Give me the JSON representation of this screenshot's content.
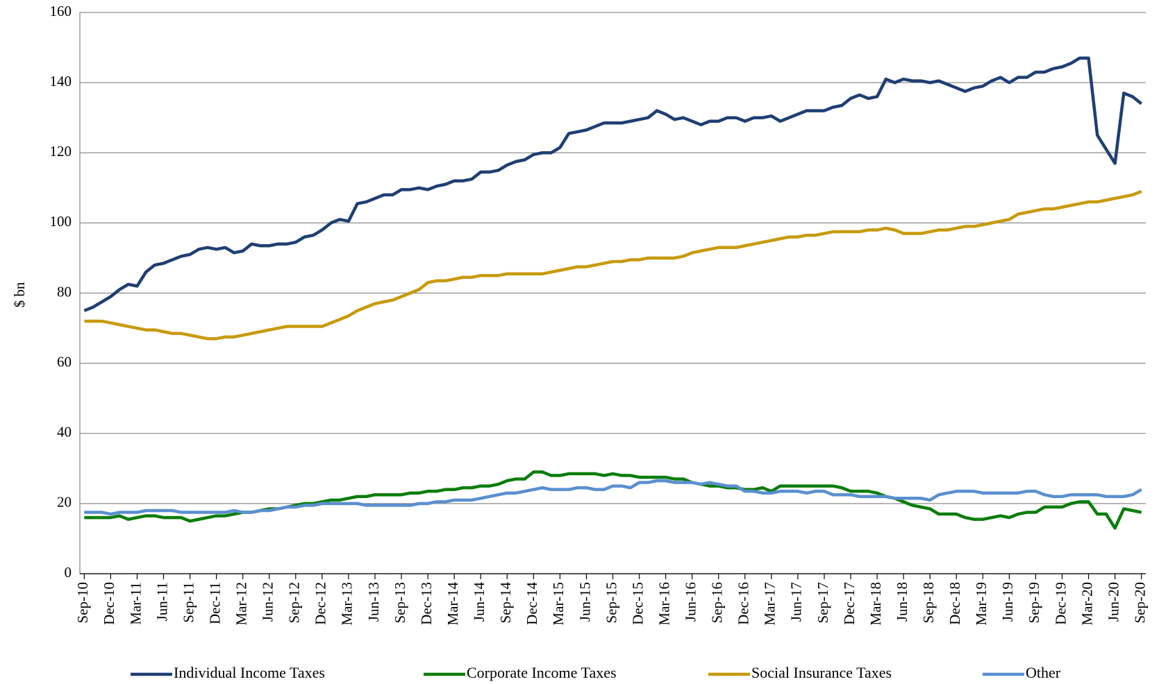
{
  "chart_data": {
    "type": "line",
    "y_label": "$ bn",
    "categories": [
      "Sep-10",
      null,
      null,
      "Dec-10",
      null,
      null,
      "Mar-11",
      null,
      null,
      "Jun-11",
      null,
      null,
      "Sep-11",
      null,
      null,
      "Dec-11",
      null,
      null,
      "Mar-12",
      null,
      null,
      "Jun-12",
      null,
      null,
      "Sep-12",
      null,
      null,
      "Dec-12",
      null,
      null,
      "Mar-13",
      null,
      null,
      "Jun-13",
      null,
      null,
      "Sep-13",
      null,
      null,
      "Dec-13",
      null,
      null,
      "Mar-14",
      null,
      null,
      "Jun-14",
      null,
      null,
      "Sep-14",
      null,
      null,
      "Dec-14",
      null,
      null,
      "Mar-15",
      null,
      null,
      "Jun-15",
      null,
      null,
      "Sep-15",
      null,
      null,
      "Dec-15",
      null,
      null,
      "Mar-16",
      null,
      null,
      "Jun-16",
      null,
      null,
      "Sep-16",
      null,
      null,
      "Dec-16",
      null,
      null,
      "Mar-17",
      null,
      null,
      "Jun-17",
      null,
      null,
      "Sep-17",
      null,
      null,
      "Dec-17",
      null,
      null,
      "Mar-18",
      null,
      null,
      "Jun-18",
      null,
      null,
      "Sep-18",
      null,
      null,
      "Dec-18",
      null,
      null,
      "Mar-19",
      null,
      null,
      "Jun-19",
      null,
      null,
      "Sep-19",
      null,
      null,
      "Dec-19",
      null,
      null,
      "Mar-20",
      null,
      null,
      "Jun-20",
      null,
      null,
      "Sep-20"
    ],
    "series": [
      {
        "name": "Individual Income Taxes",
        "color": "#1f3f73",
        "values": [
          75,
          76,
          77.5,
          79,
          81,
          82.5,
          82,
          86,
          88,
          88.5,
          89.5,
          90.5,
          91,
          92.5,
          93,
          92.5,
          93,
          91.5,
          92,
          94,
          93.5,
          93.5,
          94,
          94,
          94.5,
          96,
          96.5,
          98,
          100,
          101,
          100.5,
          105.5,
          106,
          107,
          108,
          108,
          109.5,
          109.5,
          110,
          109.5,
          110.5,
          111,
          112,
          112,
          112.5,
          114.5,
          114.5,
          115,
          116.5,
          117.5,
          118,
          119.5,
          120,
          120,
          121.5,
          125.5,
          126,
          126.5,
          127.5,
          128.5,
          128.5,
          128.5,
          129,
          129.5,
          130,
          132,
          131,
          129.5,
          130,
          129,
          128,
          129,
          129,
          130,
          130,
          129,
          130,
          130,
          130.5,
          129,
          130,
          131,
          132,
          132,
          132,
          133,
          133.5,
          135.5,
          136.5,
          135.5,
          136,
          141,
          140,
          141,
          140.5,
          140.5,
          140,
          140.5,
          139.5,
          138.5,
          137.5,
          138.5,
          139,
          140.5,
          141.5,
          140,
          141.5,
          141.5,
          143,
          143,
          144,
          144.5,
          145.5,
          147,
          147,
          125,
          121,
          117,
          137,
          136,
          134
        ]
      },
      {
        "name": "Corporate Income Taxes",
        "color": "#0b7d0b",
        "values": [
          16,
          16,
          16,
          16,
          16.5,
          15.5,
          16,
          16.5,
          16.5,
          16,
          16,
          16,
          15,
          15.5,
          16,
          16.5,
          16.5,
          17,
          17.5,
          17.5,
          18,
          18.5,
          18.5,
          19,
          19.5,
          20,
          20,
          20.5,
          21,
          21,
          21.5,
          22,
          22,
          22.5,
          22.5,
          22.5,
          22.5,
          23,
          23,
          23.5,
          23.5,
          24,
          24,
          24.5,
          24.5,
          25,
          25,
          25.5,
          26.5,
          27,
          27,
          29,
          29,
          28,
          28,
          28.5,
          28.5,
          28.5,
          28.5,
          28,
          28.5,
          28,
          28,
          27.5,
          27.5,
          27.5,
          27.5,
          27,
          27,
          26,
          25.5,
          25,
          25,
          24.5,
          24.5,
          24,
          24,
          24.5,
          23.5,
          25,
          25,
          25,
          25,
          25,
          25,
          25,
          24.5,
          23.5,
          23.5,
          23.5,
          23,
          22,
          21.5,
          20.5,
          19.5,
          19,
          18.5,
          17,
          17,
          17,
          16,
          15.5,
          15.5,
          16,
          16.5,
          16,
          17,
          17.5,
          17.5,
          19,
          19,
          19,
          20,
          20.5,
          20.5,
          17,
          17,
          13,
          18.5,
          18,
          17.5
        ]
      },
      {
        "name": "Social Insurance Taxes",
        "color": "#c89a0c",
        "values": [
          72,
          72,
          72,
          71.5,
          71,
          70.5,
          70,
          69.5,
          69.5,
          69,
          68.5,
          68.5,
          68,
          67.5,
          67,
          67,
          67.5,
          67.5,
          68,
          68.5,
          69,
          69.5,
          70,
          70.5,
          70.5,
          70.5,
          70.5,
          70.5,
          71.5,
          72.5,
          73.5,
          75,
          76,
          77,
          77.5,
          78,
          79,
          80,
          81,
          83,
          83.5,
          83.5,
          84,
          84.5,
          84.5,
          85,
          85,
          85,
          85.5,
          85.5,
          85.5,
          85.5,
          85.5,
          86,
          86.5,
          87,
          87.5,
          87.5,
          88,
          88.5,
          89,
          89,
          89.5,
          89.5,
          90,
          90,
          90,
          90,
          90.5,
          91.5,
          92,
          92.5,
          93,
          93,
          93,
          93.5,
          94,
          94.5,
          95,
          95.5,
          96,
          96,
          96.5,
          96.5,
          97,
          97.5,
          97.5,
          97.5,
          97.5,
          98,
          98,
          98.5,
          98,
          97,
          97,
          97,
          97.5,
          98,
          98,
          98.5,
          99,
          99,
          99.5,
          100,
          100.5,
          101,
          102.5,
          103,
          103.5,
          104,
          104,
          104.5,
          105,
          105.5,
          106,
          106,
          106.5,
          107,
          107.5,
          108,
          109
        ]
      },
      {
        "name": "Other",
        "color": "#5a8fd0",
        "values": [
          17.5,
          17.5,
          17.5,
          17,
          17.5,
          17.5,
          17.5,
          18,
          18,
          18,
          18,
          17.5,
          17.5,
          17.5,
          17.5,
          17.5,
          17.5,
          18,
          17.5,
          17.5,
          18,
          18,
          18.5,
          19,
          19,
          19.5,
          19.5,
          20,
          20,
          20,
          20,
          20,
          19.5,
          19.5,
          19.5,
          19.5,
          19.5,
          19.5,
          20,
          20,
          20.5,
          20.5,
          21,
          21,
          21,
          21.5,
          22,
          22.5,
          23,
          23,
          23.5,
          24,
          24.5,
          24,
          24,
          24,
          24.5,
          24.5,
          24,
          24,
          25,
          25,
          24.5,
          26,
          26,
          26.5,
          26.5,
          26,
          26,
          26,
          25.5,
          26,
          25.5,
          25,
          25,
          23.5,
          23.5,
          23,
          23,
          23.5,
          23.5,
          23.5,
          23,
          23.5,
          23.5,
          22.5,
          22.5,
          22.5,
          22,
          22,
          22,
          22,
          21.5,
          21.5,
          21.5,
          21.5,
          21,
          22.5,
          23,
          23.5,
          23.5,
          23.5,
          23,
          23,
          23,
          23,
          23,
          23.5,
          23.5,
          22.5,
          22,
          22,
          22.5,
          22.5,
          22.5,
          22.5,
          22,
          22,
          22,
          22.5,
          24
        ]
      }
    ],
    "ylim": [
      0,
      160
    ],
    "yticks": [
      0,
      20,
      40,
      60,
      80,
      100,
      120,
      140,
      160
    ],
    "grid": true,
    "legend": "bottom"
  }
}
